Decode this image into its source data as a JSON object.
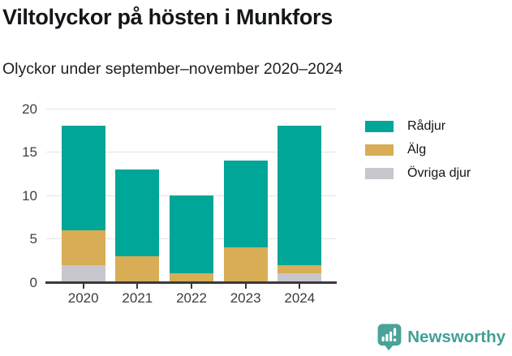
{
  "header": {
    "title": "Viltolyckor på hösten i Munkfors",
    "subtitle": "Olyckor under september–november 2020–2024"
  },
  "chart_data": {
    "type": "bar",
    "stacked": true,
    "title": "Viltolyckor på hösten i Munkfors",
    "subtitle": "Olyckor under september–november 2020–2024",
    "categories": [
      "2020",
      "2021",
      "2022",
      "2023",
      "2024"
    ],
    "series": [
      {
        "name": "Rådjur",
        "color": "#00a697",
        "values": [
          12,
          10,
          9,
          10,
          16
        ]
      },
      {
        "name": "Älg",
        "color": "#d8ad56",
        "values": [
          4,
          3,
          1,
          4,
          1
        ]
      },
      {
        "name": "Övriga djur",
        "color": "#c8c6cd",
        "values": [
          2,
          0,
          0,
          0,
          1
        ]
      }
    ],
    "stack_order_bottom_to_top": [
      "Övriga djur",
      "Älg",
      "Rådjur"
    ],
    "totals": [
      18,
      13,
      10,
      14,
      18
    ],
    "xlabel": "",
    "ylabel": "",
    "ylim": [
      0,
      20
    ],
    "yticks": [
      0,
      5,
      10,
      15,
      20
    ],
    "grid": true,
    "legend_position": "right-top"
  },
  "colors": {
    "radjur": "#00a697",
    "alg": "#d8ad56",
    "ovriga_djur": "#c8c6cd",
    "axis": "#3a3a3a",
    "gridline": "#e4e4e4",
    "brand_teal": "#42a095"
  },
  "footer": {
    "brand": "Newsworthy"
  }
}
